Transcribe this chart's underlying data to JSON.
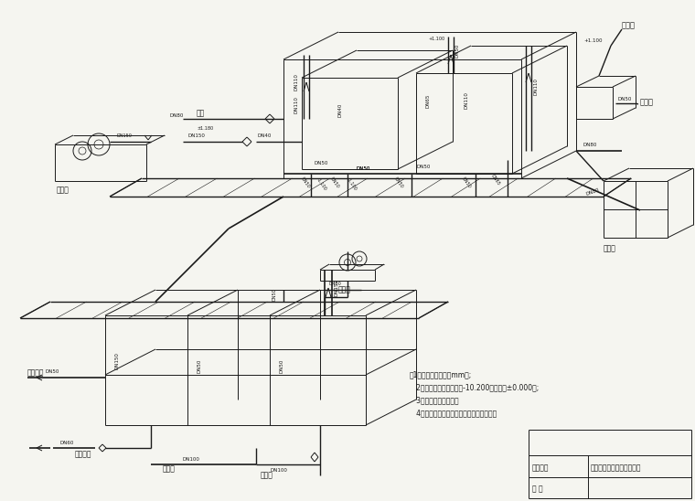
{
  "bg_color": "#f5f5f0",
  "line_color": "#1a1a1a",
  "lw": 0.7,
  "notes": [
    "注1、图中管径单位以mm计;",
    "   2、以设备间地面标高为-10.200米为本图±0.000米;",
    "   3、标高标注为管底制",
    "   4、进室管为从点指底部接管请入排水沟。"
  ],
  "title_block": {
    "label_project": "工程名称",
    "val_project": "办公楼中水回用水处理工程",
    "label_num": "图 号"
  }
}
